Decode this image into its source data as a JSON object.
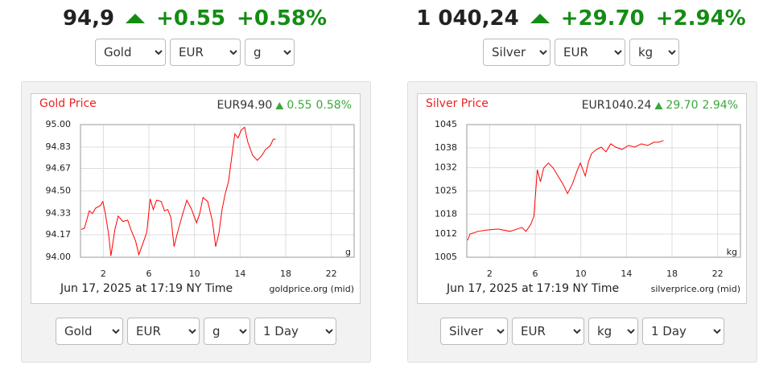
{
  "widgets": [
    {
      "header": {
        "price": "94,9",
        "change": "+0.55",
        "percent": "+0.58%"
      },
      "top_selects": [
        "Gold",
        "EUR",
        "g"
      ],
      "bottom_selects": [
        "Gold",
        "EUR",
        "g",
        "1 Day"
      ]
    },
    {
      "header": {
        "price": "1 040,24",
        "change": "+29.70",
        "percent": "+2.94%"
      },
      "top_selects": [
        "Silver",
        "EUR",
        "kg"
      ],
      "bottom_selects": [
        "Silver",
        "EUR",
        "kg",
        "1 Day"
      ]
    }
  ],
  "chart_data": [
    {
      "type": "line",
      "title": "Gold Price",
      "quote": "EUR94.90",
      "change": "0.55",
      "percent": "0.58%",
      "unit": "g",
      "timestamp": "Jun 17, 2025 at 17:19 NY Time",
      "source": "goldprice.org (mid)",
      "x": [
        0.07,
        0.35,
        0.77,
        1.05,
        1.33,
        1.75,
        1.96,
        2.18,
        2.46,
        2.67,
        3.02,
        3.3,
        3.72,
        4.14,
        4.42,
        4.84,
        5.12,
        5.54,
        5.82,
        6.11,
        6.39,
        6.67,
        7.09,
        7.37,
        7.65,
        7.93,
        8.21,
        8.49,
        8.91,
        9.33,
        9.75,
        10.18,
        10.46,
        10.74,
        11.16,
        11.58,
        11.86,
        12.14,
        12.42,
        12.7,
        12.98,
        13.26,
        13.54,
        13.82,
        14.11,
        14.39,
        14.67,
        15.09,
        15.51,
        15.93,
        16.21,
        16.63,
        16.91,
        17.12
      ],
      "series": [
        {
          "color": "#ff0000",
          "values": [
            94.21,
            94.22,
            94.35,
            94.33,
            94.37,
            94.39,
            94.42,
            94.33,
            94.18,
            94.01,
            94.21,
            94.31,
            94.27,
            94.28,
            94.21,
            94.12,
            94.02,
            94.12,
            94.19,
            94.44,
            94.36,
            94.43,
            94.42,
            94.35,
            94.36,
            94.3,
            94.08,
            94.18,
            94.31,
            94.43,
            94.36,
            94.26,
            94.33,
            94.45,
            94.42,
            94.27,
            94.08,
            94.18,
            94.36,
            94.48,
            94.57,
            94.75,
            94.93,
            94.9,
            94.96,
            94.98,
            94.87,
            94.77,
            94.73,
            94.77,
            94.81,
            94.84,
            94.89,
            94.89
          ]
        }
      ],
      "xlim": [
        0,
        24
      ],
      "xticks": [
        2,
        6,
        10,
        14,
        18,
        22
      ],
      "ylim": [
        94,
        95
      ],
      "yticks": [
        {
          "value": 95,
          "label": "95.00"
        },
        94.83,
        94.67,
        {
          "value": 94.5,
          "label": "94.50"
        },
        94.33,
        94.17,
        {
          "value": 94,
          "label": "94.00"
        }
      ],
      "grid": true
    },
    {
      "type": "line",
      "title": "Silver Price",
      "quote": "EUR1040.24",
      "change": "29.70",
      "percent": "2.94%",
      "unit": "kg",
      "timestamp": "Jun 17, 2025 at 17:19 NY Time",
      "source": "silverprice.org (mid)",
      "x": [
        0.07,
        0.28,
        0.98,
        1.68,
        2.74,
        3.79,
        4.84,
        5.19,
        5.61,
        5.89,
        6.18,
        6.46,
        6.74,
        7.16,
        7.58,
        8.0,
        8.42,
        8.84,
        9.26,
        9.68,
        9.96,
        10.39,
        10.67,
        10.95,
        11.37,
        11.79,
        12.21,
        12.63,
        13.05,
        13.61,
        14.18,
        14.74,
        15.3,
        15.86,
        16.42,
        16.84,
        17.26
      ],
      "series": [
        {
          "color": "#ff0000",
          "values": [
            1010.1,
            1012.0,
            1012.8,
            1013.2,
            1013.5,
            1012.8,
            1014.0,
            1012.8,
            1014.9,
            1017.4,
            1031.4,
            1027.8,
            1031.9,
            1033.4,
            1031.9,
            1029.5,
            1027.1,
            1024.2,
            1027.1,
            1031.1,
            1033.4,
            1029.5,
            1033.8,
            1036.3,
            1037.5,
            1038.2,
            1036.8,
            1039.2,
            1038.2,
            1037.5,
            1038.7,
            1038.2,
            1039.2,
            1038.7,
            1039.7,
            1039.7,
            1040.2
          ]
        }
      ],
      "xlim": [
        0,
        24
      ],
      "xticks": [
        2,
        6,
        10,
        14,
        18,
        22
      ],
      "ylim": [
        1005,
        1045
      ],
      "yticks": [
        1045,
        1038,
        1032,
        1025,
        1018,
        1012,
        1005
      ],
      "grid": true
    }
  ]
}
